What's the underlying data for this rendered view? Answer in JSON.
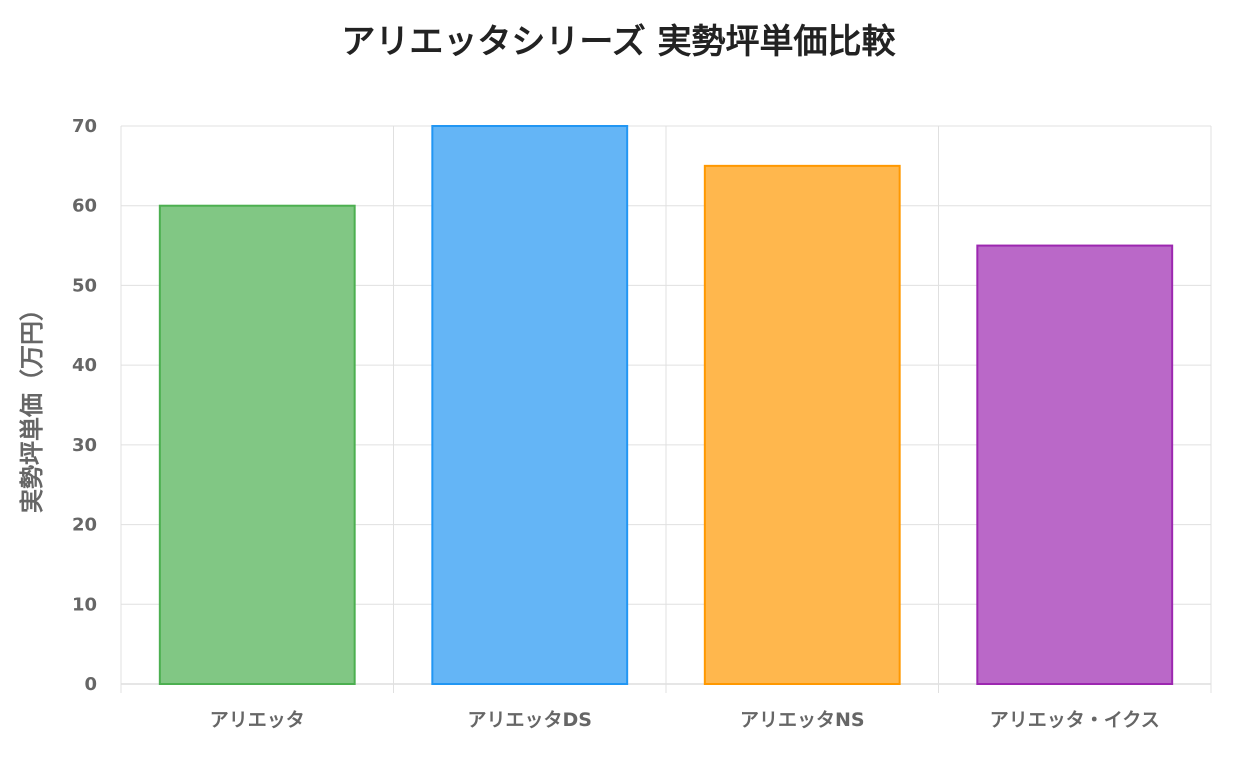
{
  "chart_data": {
    "type": "bar",
    "title": "アリエッタシリーズ 実勢坪単価比較",
    "xlabel": "",
    "ylabel": "実勢坪単価（万円）",
    "categories": [
      "アリエッタ",
      "アリエッタDS",
      "アリエッタNS",
      "アリエッタ・イクス"
    ],
    "values": [
      60,
      70,
      65,
      55
    ],
    "ylim": [
      0,
      70
    ],
    "yticks": [
      0,
      10,
      20,
      30,
      40,
      50,
      60,
      70
    ],
    "grid": true,
    "legend": "none",
    "colors": {
      "fills": [
        "#81c784",
        "#64b5f6",
        "#ffb74d",
        "#ba68c8"
      ],
      "borders": [
        "#4caf50",
        "#2196f3",
        "#ff9800",
        "#9c27b0"
      ],
      "grid": "#e0e0e0",
      "axis": "#cccccc",
      "text": "#666666",
      "title": "#222222"
    }
  }
}
